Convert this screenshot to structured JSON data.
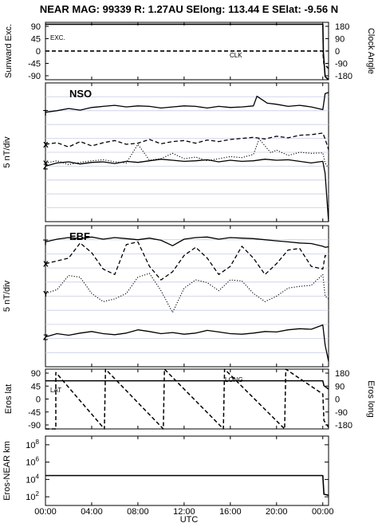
{
  "chart_data": [
    {
      "type": "line",
      "title": "NEAR MAG: 99339  R: 1.27AU  SElong: 113.44 E  SElat:  -9.56 N",
      "ylabel_left": "Sunward Exc.",
      "ylabel_right": "Clock Angle",
      "yticks_left": [
        "90",
        "45",
        "0",
        "-45",
        "-90"
      ],
      "yticks_right": [
        "180",
        "90",
        "0",
        "-90",
        "-180"
      ],
      "ylim_left": [
        -90,
        90
      ],
      "ylim_right": [
        -180,
        180
      ],
      "series": [
        {
          "name": "EXC.",
          "style": "solid",
          "x": [
            0,
            24.0,
            24.05,
            24.2,
            24.5
          ],
          "y": [
            84,
            84,
            -5,
            -80,
            -90
          ]
        },
        {
          "name": "CLK",
          "style": "dashed",
          "x": [
            0,
            24.0,
            24.1,
            24.5
          ],
          "y": [
            0,
            0,
            -40,
            -55
          ]
        }
      ]
    },
    {
      "type": "line",
      "ylabel": "5 nT/div",
      "annotation": "NSO",
      "series": [
        {
          "name": "T",
          "style": "solid",
          "x": [
            0,
            1,
            2,
            3,
            4,
            5,
            6,
            7,
            8,
            9,
            10,
            11,
            12,
            13,
            14,
            15,
            16,
            17,
            18,
            18.3,
            19.2,
            20,
            21,
            22,
            23,
            24,
            24.2,
            24.5
          ],
          "y": [
            7.5,
            7.8,
            8.2,
            7.9,
            8.4,
            8.6,
            8.8,
            8.5,
            8.7,
            8.6,
            8.3,
            8.5,
            8.7,
            8.6,
            8.3,
            8.6,
            8.4,
            8.5,
            8.7,
            10.5,
            9.2,
            9.0,
            8.6,
            8.8,
            8.5,
            8.0,
            11.0,
            11.2
          ]
        },
        {
          "name": "X",
          "style": "dashed",
          "x": [
            0,
            1,
            2,
            3,
            4,
            5,
            6,
            7,
            8,
            9,
            10,
            11,
            12,
            13,
            14,
            15,
            16,
            17,
            18,
            19,
            20,
            21,
            22,
            23,
            24,
            24.2,
            24.5
          ],
          "y": [
            1.5,
            1.8,
            1.0,
            2.0,
            1.2,
            1.8,
            2.2,
            1.5,
            1.7,
            2.4,
            1.6,
            2.0,
            2.2,
            1.7,
            2.3,
            2.0,
            2.4,
            2.6,
            2.8,
            2.5,
            3.0,
            2.7,
            3.2,
            3.3,
            3.6,
            2.5,
            0.5
          ]
        },
        {
          "name": "Y",
          "style": "dotted",
          "x": [
            0,
            1,
            2,
            3,
            4,
            5,
            6,
            7,
            8,
            9,
            10,
            11,
            12,
            13,
            14,
            15,
            16,
            17,
            18,
            18.5,
            19.5,
            20,
            21,
            22,
            23,
            24,
            24.2,
            24.5
          ],
          "y": [
            -2.0,
            -1.6,
            -2.3,
            -1.9,
            -1.6,
            -1.4,
            -1.8,
            -2.0,
            1.5,
            -1.5,
            -1.2,
            -0.2,
            -1.2,
            -0.9,
            -1.6,
            -1.2,
            -0.8,
            -1.0,
            -0.4,
            2.5,
            -0.1,
            0.4,
            -0.6,
            0.0,
            -0.2,
            -0.1,
            -2.0,
            -3.0
          ]
        },
        {
          "name": "Z",
          "style": "solid",
          "x": [
            0,
            1,
            2,
            3,
            4,
            5,
            6,
            7,
            8,
            9,
            10,
            11,
            12,
            13,
            14,
            15,
            16,
            17,
            18,
            19,
            20,
            21,
            22,
            23,
            24,
            24.2,
            24.5
          ],
          "y": [
            -2.6,
            -2.0,
            -1.8,
            -2.2,
            -1.9,
            -1.8,
            -2.1,
            -1.7,
            -1.9,
            -1.6,
            -1.3,
            -1.5,
            -1.7,
            -1.6,
            -1.4,
            -1.8,
            -1.5,
            -1.7,
            -1.6,
            -1.3,
            -1.5,
            -1.4,
            -1.7,
            -2.0,
            -1.7,
            -4.0,
            -15.0
          ]
        }
      ]
    },
    {
      "type": "line",
      "ylabel": "5 nT/div",
      "annotation": "EBF",
      "series": [
        {
          "name": "T",
          "style": "solid",
          "x": [
            0,
            1,
            2,
            3,
            4,
            5,
            6,
            7,
            8,
            9,
            10,
            11,
            12,
            13,
            14,
            15,
            16,
            17,
            18,
            19,
            20,
            21,
            22,
            23,
            24,
            24.2,
            24.5
          ],
          "y": [
            10.0,
            10.5,
            10.8,
            10.6,
            10.9,
            10.5,
            10.8,
            10.6,
            10.4,
            10.7,
            10.3,
            9.3,
            10.5,
            10.8,
            10.9,
            10.5,
            10.8,
            10.7,
            10.6,
            10.4,
            10.2,
            10.0,
            9.8,
            9.7,
            9.2,
            9.0,
            9.1
          ]
        },
        {
          "name": "X",
          "style": "dashed",
          "x": [
            0,
            1,
            2,
            3,
            4,
            5,
            6,
            7,
            8,
            9,
            10,
            11,
            12,
            13,
            14,
            15,
            16,
            17,
            18,
            19,
            20,
            21,
            22,
            23,
            24,
            24.2,
            24.5
          ],
          "y": [
            6.0,
            6.5,
            7.0,
            9.8,
            8.0,
            5.0,
            4.0,
            9.5,
            10.0,
            5.5,
            3.0,
            4.5,
            7.5,
            9.0,
            7.0,
            4.0,
            5.5,
            9.2,
            7.0,
            4.0,
            6.0,
            8.5,
            8.8,
            5.5,
            5.0,
            7.5,
            7.2
          ]
        },
        {
          "name": "Y",
          "style": "dotted",
          "x": [
            0,
            1,
            2,
            3,
            4,
            5,
            6,
            7,
            8,
            9,
            10,
            11,
            12,
            13,
            14,
            15,
            16,
            17,
            18,
            19,
            20,
            21,
            22,
            23,
            24,
            24.2,
            24.5
          ],
          "y": [
            0.5,
            1.2,
            3.8,
            3.5,
            0.5,
            -1.0,
            -0.5,
            0.5,
            3.5,
            4.2,
            1.0,
            -3.0,
            1.5,
            3.0,
            2.5,
            1.0,
            3.0,
            2.8,
            0.5,
            -1.0,
            0.0,
            1.5,
            1.8,
            2.0,
            4.0,
            0.0,
            -0.5
          ]
        },
        {
          "name": "Z",
          "style": "solid",
          "x": [
            0,
            1,
            2,
            3,
            4,
            5,
            6,
            7,
            8,
            9,
            10,
            11,
            12,
            13,
            14,
            15,
            16,
            17,
            18,
            19,
            20,
            21,
            22,
            23,
            24,
            24.2,
            24.5
          ],
          "y": [
            -7.5,
            -6.9,
            -7.2,
            -6.8,
            -6.5,
            -6.9,
            -7.1,
            -6.8,
            -6.2,
            -6.5,
            -6.9,
            -6.7,
            -7.0,
            -6.8,
            -6.3,
            -6.6,
            -6.9,
            -7.0,
            -6.8,
            -6.5,
            -6.6,
            -6.2,
            -6.0,
            -6.1,
            -5.3,
            -9.0,
            -12.0
          ]
        }
      ]
    },
    {
      "type": "line",
      "ylabel_left": "Eros lat",
      "ylabel_right": "Eros long",
      "yticks_left": [
        "90",
        "45",
        "0",
        "-45",
        "-90"
      ],
      "yticks_right": [
        "180",
        "90",
        "0",
        "-90",
        "-180"
      ],
      "ylim_left": [
        -90,
        90
      ],
      "ylim_right": [
        -180,
        180
      ],
      "series": [
        {
          "name": "LAT",
          "style": "solid",
          "x": [
            0,
            24.0,
            24.1,
            24.5
          ],
          "y": [
            55,
            55,
            40,
            30
          ]
        },
        {
          "name": "LONG",
          "style": "dashed",
          "axis": "right",
          "x": [
            0,
            0.9,
            0.9,
            5.1,
            5.2,
            10.2,
            10.3,
            15.4,
            15.5,
            20.7,
            20.8,
            24.0,
            24.1,
            24.5
          ],
          "y": [
            -180,
            -180,
            160,
            -180,
            180,
            -180,
            180,
            -180,
            180,
            -180,
            180,
            30,
            -130,
            -170
          ]
        }
      ]
    },
    {
      "type": "line",
      "ylabel": "Eros-NEAR km",
      "yscale": "log",
      "yticks": [
        "10^8",
        "10^6",
        "10^4",
        "10^2"
      ],
      "ylim": [
        10,
        1000000000.0
      ],
      "xlabel": "UTC",
      "xticks": [
        "00:00",
        "04:00",
        "08:00",
        "12:00",
        "16:00",
        "20:00",
        "00:00"
      ],
      "xlim": [
        0,
        24.5
      ],
      "series": [
        {
          "name": "range",
          "style": "solid",
          "x": [
            0,
            24.0,
            24.1,
            24.5
          ],
          "y": [
            28000,
            28000,
            200,
            150
          ]
        }
      ]
    }
  ]
}
